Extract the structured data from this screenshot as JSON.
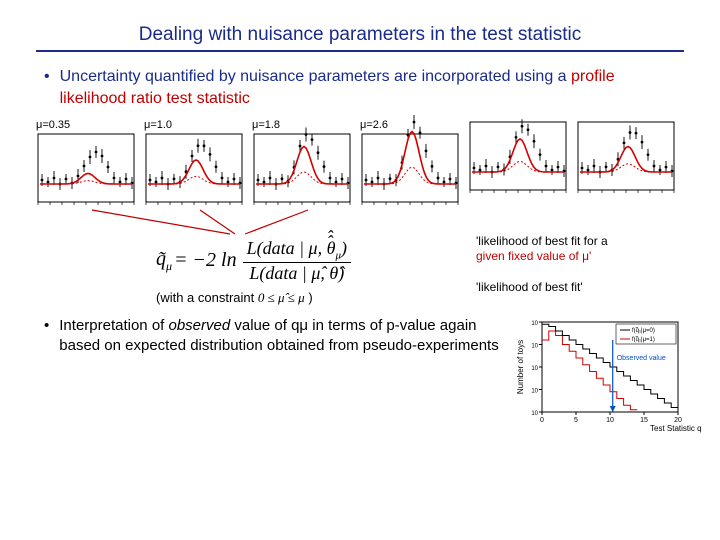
{
  "title": "Dealing with nuisance parameters in the test statistic",
  "bullet1_a": "Uncertainty quantified by nuisance parameters are incorporated using a ",
  "bullet1_b": "profile likelihood ratio test statistic",
  "panels": {
    "labels": [
      "μ=0.35",
      "μ=1.0",
      "μ=1.8",
      "μ=2.6",
      "",
      ""
    ],
    "curve_scale": [
      0.35,
      0.8,
      1.25,
      1.75,
      1.1,
      0.85
    ],
    "plot": {
      "width": 100,
      "height": 76,
      "bg": "#ffffff",
      "axis_color": "#000000",
      "tick_color": "#000000",
      "curve_color": "#d40000",
      "curve_dash_color": "#d40000",
      "point_color": "#000000",
      "error_color": "#000000",
      "data_x": [
        6,
        12,
        18,
        24,
        30,
        36,
        42,
        48,
        54,
        60,
        66,
        72,
        78,
        84,
        90,
        96
      ],
      "base_y": [
        48,
        50,
        46,
        52,
        47,
        51,
        44,
        34,
        25,
        20,
        24,
        35,
        46,
        50,
        47,
        51
      ],
      "err": [
        6,
        5,
        7,
        6,
        5,
        6,
        7,
        6,
        7,
        6,
        7,
        6,
        6,
        5,
        6,
        6
      ]
    }
  },
  "formula": {
    "lhs": "q̃",
    "lhs_sub": "μ",
    "eq": " = −2 ln",
    "num_a": "L(data | μ, ",
    "num_b": "θ̂̂",
    "num_c": "",
    "num_sub": "μ",
    "num_d": ")",
    "den_a": "L(data | μ̂, θ̂)",
    "den": "L(data | μ̂, θ̂)"
  },
  "annot_num_a": "'likelihood of best fit for a",
  "annot_num_b": "given fixed value of μ'",
  "annot_den": "'likelihood of best fit'",
  "constraint_a": "(with a constraint ",
  "constraint_math": "0 ≤ μ̂ ≤ μ",
  "constraint_b": " )",
  "bullet2_a": "Interpretation of ",
  "bullet2_b": "observed",
  "bullet2_c": " value of qμ in terms of p-value again based on expected distribution obtained from pseudo-experiments",
  "toy": {
    "ylabel": "Number of toys",
    "xlabel": "Test Statistic q",
    "xlabel_sub": "1",
    "legend1": "f(q̃₁|μ=0)",
    "legend2": "f(q̃₁|μ=1)",
    "obs_label": "Observed value",
    "axis_color": "#000000",
    "hist1_color": "#000000",
    "hist2_color": "#d40000",
    "obs_color": "#0050c8",
    "xticks": [
      0,
      5,
      10,
      15,
      20
    ],
    "ylog_decades": [
      1,
      10,
      100,
      1000,
      10000
    ],
    "hist1": [
      3.9,
      3.8,
      3.6,
      3.4,
      3.2,
      3.0,
      2.8,
      2.6,
      2.4,
      2.2,
      2.0,
      1.8,
      1.6,
      1.4,
      1.2,
      1.0,
      0.8,
      0.6,
      0.4,
      0.2
    ],
    "hist2": [
      3.2,
      3.6,
      3.4,
      3.0,
      2.7,
      2.4,
      2.1,
      1.8,
      1.5,
      1.2,
      0.9,
      0.6,
      0.3,
      0.1
    ],
    "obs_x": 0.52
  },
  "colors": {
    "title": "#1a2b8c",
    "bullet": "#1a2b8c",
    "accent_red": "#c00000"
  }
}
